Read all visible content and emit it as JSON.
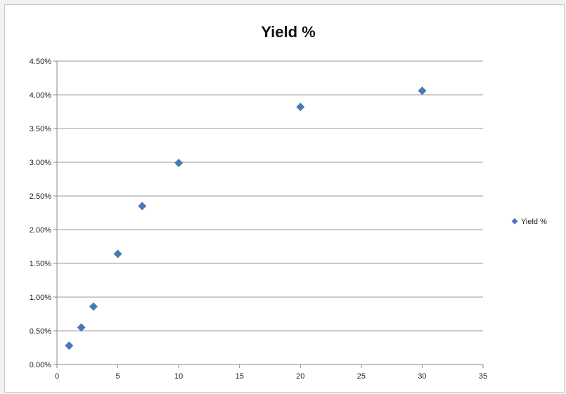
{
  "chart_data": {
    "type": "scatter",
    "title": "Yield %",
    "xlabel": "",
    "ylabel": "",
    "xlim": [
      0,
      35
    ],
    "ylim": [
      0,
      0.045
    ],
    "x_ticks": [
      "0",
      "5",
      "10",
      "15",
      "20",
      "25",
      "30",
      "35"
    ],
    "y_ticks": [
      "0.00%",
      "0.50%",
      "1.00%",
      "1.50%",
      "2.00%",
      "2.50%",
      "3.00%",
      "3.50%",
      "4.00%",
      "4.50%"
    ],
    "grid": "horizontal",
    "legend_position": "right",
    "series": [
      {
        "name": "Yield %",
        "color": "#4a78b5",
        "marker": "diamond",
        "points": [
          {
            "x": 1,
            "y": 0.0028
          },
          {
            "x": 2,
            "y": 0.0055
          },
          {
            "x": 3,
            "y": 0.0086
          },
          {
            "x": 5,
            "y": 0.0164
          },
          {
            "x": 7,
            "y": 0.0235
          },
          {
            "x": 10,
            "y": 0.0299
          },
          {
            "x": 20,
            "y": 0.0382
          },
          {
            "x": 30,
            "y": 0.0406
          }
        ]
      }
    ]
  }
}
